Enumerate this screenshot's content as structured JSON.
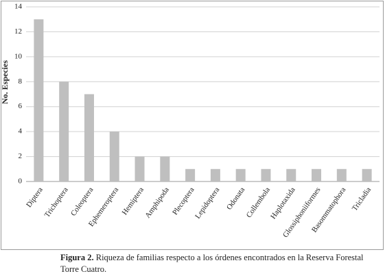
{
  "chart_data": {
    "type": "bar",
    "y_label": "No. Especies",
    "categories": [
      "Diptera",
      "Trichoptera",
      "Coleoptera",
      "Ephemeroptera",
      "Hemiptera",
      "Amphipoda",
      "Plecoptera",
      "Lepidoptera",
      "Odonata",
      "Collembola",
      "Haplotaxida",
      "Glossiphoniiformes",
      "Basommatophora",
      "Tricladia"
    ],
    "values": [
      13,
      8,
      7,
      4,
      2,
      2,
      1,
      1,
      1,
      1,
      1,
      1,
      1,
      1
    ],
    "color": "#bfbfbf",
    "ylim": [
      0,
      14
    ],
    "yticks": [
      0,
      2,
      4,
      6,
      8,
      10,
      12,
      14
    ],
    "grid": true,
    "caption_label": "Figura 2.",
    "caption": "Riqueza de familias respecto a los órdenes encontrados en la Reserva Forestal",
    "caption_line2": "Torre Cuatro."
  }
}
